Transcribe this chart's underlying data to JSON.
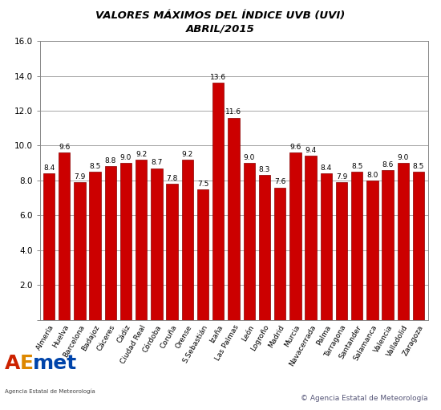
{
  "title_line1": "VALORES MÁXIMOS DEL ÍNDICE UVB (UVI)",
  "title_line2": "ABRIL/2015",
  "categories": [
    "Almería",
    "Huelva",
    "Barcelona",
    "Badajoz",
    "Cáceres",
    "Cádiz",
    "Ciudad Real",
    "Córdoba",
    "Coruña",
    "Orense",
    "S.Sebastián",
    "Izaña",
    "Las Palmas",
    "León",
    "Logroño",
    "Madrid",
    "Murcia",
    "Navacerrada",
    "Palma",
    "Tarragona",
    "Santander",
    "Salamanca",
    "Valencia",
    "Valladolid",
    "Zaragoza"
  ],
  "values": [
    8.4,
    9.6,
    7.9,
    8.5,
    8.8,
    9.0,
    9.2,
    8.7,
    7.8,
    9.2,
    7.5,
    13.6,
    11.6,
    9.0,
    8.3,
    7.6,
    9.6,
    9.4,
    8.4,
    7.9,
    8.5,
    8.0,
    8.6,
    9.0,
    8.5
  ],
  "bar_color": "#cc0000",
  "bar_edge_color": "#880000",
  "ylim": [
    0,
    16.0
  ],
  "yticks": [
    0.0,
    2.0,
    4.0,
    6.0,
    8.0,
    10.0,
    12.0,
    14.0,
    16.0
  ],
  "background_color": "#ffffff",
  "grid_color": "#999999",
  "title_fontsize": 9.5,
  "label_fontsize": 6.5,
  "tick_label_fontsize": 7.5,
  "value_label_fontsize": 6.5,
  "copyright_text": "© Agencia Estatal de Meteorología",
  "aemet_text": "Agencia Estatal de Meteorología"
}
